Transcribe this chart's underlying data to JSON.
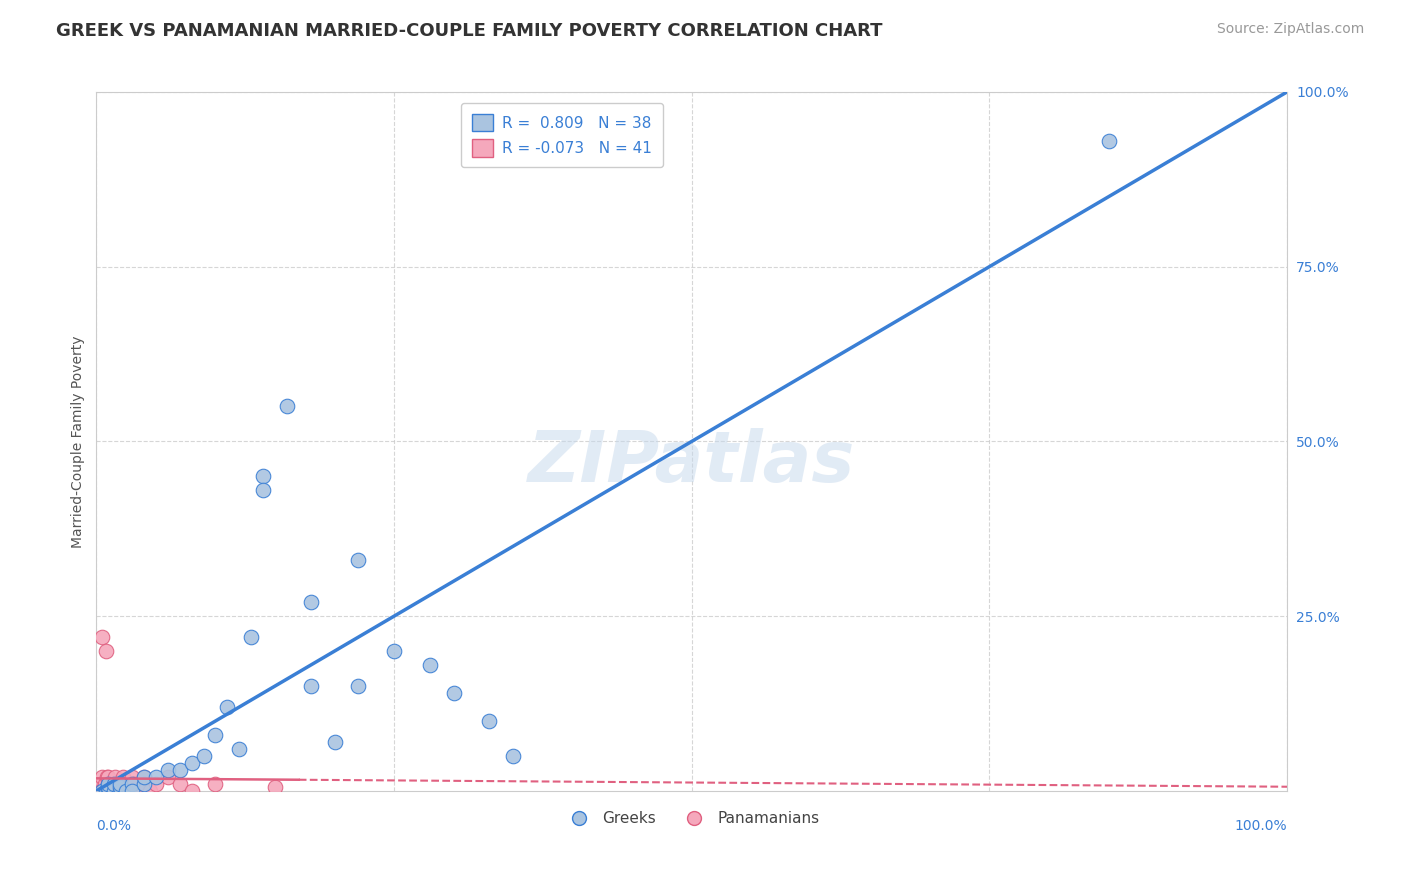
{
  "title": "GREEK VS PANAMANIAN MARRIED-COUPLE FAMILY POVERTY CORRELATION CHART",
  "source": "Source: ZipAtlas.com",
  "ylabel": "Married-Couple Family Poverty",
  "watermark": "ZIPatlas",
  "xlim": [
    0,
    1
  ],
  "ylim": [
    0,
    1
  ],
  "background_color": "#ffffff",
  "grid_color": "#cccccc",
  "greek_color": "#aac4e0",
  "panamanian_color": "#f5a8bc",
  "greek_line_color": "#3a7fd5",
  "panamanian_line_color": "#e06080",
  "R_greek": 0.809,
  "N_greek": 38,
  "R_panamanian": -0.073,
  "N_panamanian": 41,
  "greek_x": [
    0.005,
    0.008,
    0.01,
    0.01,
    0.01,
    0.015,
    0.015,
    0.02,
    0.02,
    0.02,
    0.025,
    0.03,
    0.03,
    0.04,
    0.04,
    0.05,
    0.06,
    0.07,
    0.08,
    0.09,
    0.1,
    0.11,
    0.12,
    0.13,
    0.14,
    0.16,
    0.18,
    0.2,
    0.22,
    0.25,
    0.28,
    0.3,
    0.33,
    0.35,
    0.22,
    0.18,
    0.14,
    0.85
  ],
  "greek_y": [
    0.0,
    0.0,
    0.0,
    0.005,
    0.01,
    0.0,
    0.01,
    0.0,
    0.005,
    0.01,
    0.0,
    0.01,
    0.0,
    0.01,
    0.02,
    0.02,
    0.03,
    0.03,
    0.04,
    0.05,
    0.08,
    0.12,
    0.06,
    0.22,
    0.45,
    0.55,
    0.15,
    0.07,
    0.15,
    0.2,
    0.18,
    0.14,
    0.1,
    0.05,
    0.33,
    0.27,
    0.43,
    0.93
  ],
  "pan_x": [
    0.002,
    0.003,
    0.004,
    0.005,
    0.005,
    0.006,
    0.007,
    0.008,
    0.009,
    0.01,
    0.01,
    0.01,
    0.01,
    0.012,
    0.013,
    0.014,
    0.015,
    0.016,
    0.017,
    0.018,
    0.02,
    0.02,
    0.022,
    0.025,
    0.025,
    0.028,
    0.03,
    0.03,
    0.032,
    0.035,
    0.04,
    0.04,
    0.045,
    0.05,
    0.06,
    0.07,
    0.08,
    0.1,
    0.005,
    0.008,
    0.15
  ],
  "pan_y": [
    0.0,
    0.01,
    0.0,
    0.0,
    0.02,
    0.0,
    0.01,
    0.0,
    0.02,
    0.0,
    0.01,
    0.02,
    0.0,
    0.0,
    0.01,
    0.0,
    0.01,
    0.02,
    0.0,
    0.01,
    0.0,
    0.01,
    0.02,
    0.0,
    0.01,
    0.01,
    0.0,
    0.02,
    0.01,
    0.0,
    0.01,
    0.02,
    0.0,
    0.01,
    0.02,
    0.01,
    0.0,
    0.01,
    0.22,
    0.2,
    0.005
  ],
  "greek_line_x": [
    0.0,
    1.0
  ],
  "greek_line_y": [
    0.0,
    1.0
  ],
  "pan_line_x": [
    0.0,
    1.0
  ],
  "pan_line_y": [
    0.018,
    0.006
  ],
  "title_fontsize": 13,
  "label_fontsize": 10,
  "legend_fontsize": 11,
  "source_fontsize": 10,
  "ylabel_fontsize": 10
}
